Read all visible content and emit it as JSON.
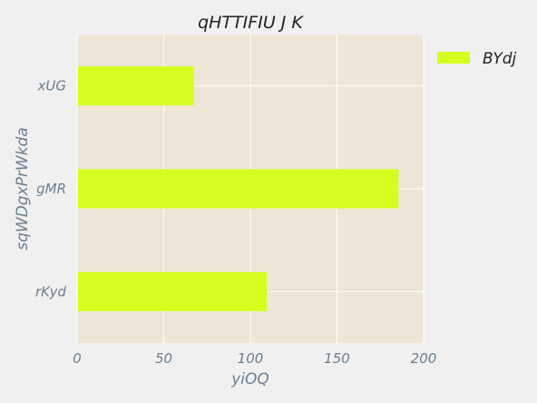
{
  "chart_data": {
    "type": "bar",
    "orientation": "horizontal",
    "title": "qHTTIFIU J K",
    "xlabel": "yiOQ",
    "ylabel": "sqWDgxPrWkda",
    "categories": [
      "rKyd",
      "gMR",
      "xUG"
    ],
    "series": [
      {
        "name": "BYdj",
        "values": [
          109,
          185,
          67
        ]
      }
    ],
    "xlim": [
      0,
      200
    ],
    "xticks": [
      0,
      50,
      100,
      150,
      200
    ],
    "grid": true,
    "legend_position": "top-right, outside plot",
    "colors": {
      "figure_background": "#f0f0f0",
      "plot_background": "#ede6d6",
      "bar": "#d4ff1e",
      "grid": "#ffffff",
      "text": "#222222",
      "axis_text": "#6b7f8f"
    }
  }
}
